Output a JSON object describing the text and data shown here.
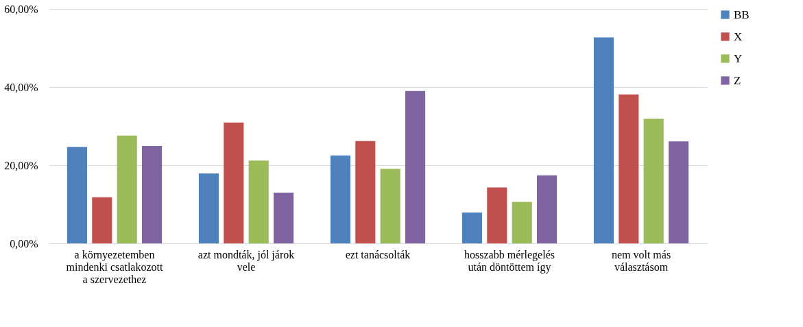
{
  "chart_data": {
    "type": "bar",
    "categories": [
      "a környezetemben\nmindenki csatlakozott\na szervezethez",
      "azt mondták, jól járok\nvele",
      "ezt tanácsolták",
      "hosszabb mérlegelés\nután döntöttem így",
      "nem volt más\nválasztásom"
    ],
    "series": [
      {
        "name": "BB",
        "color": "#4f81bd",
        "values": [
          24.7,
          17.9,
          22.5,
          7.9,
          52.7
        ]
      },
      {
        "name": "X",
        "color": "#c0504d",
        "values": [
          11.8,
          30.9,
          26.2,
          14.3,
          38.1
        ]
      },
      {
        "name": "Y",
        "color": "#9bbb59",
        "values": [
          27.6,
          21.2,
          19.1,
          10.6,
          31.9
        ]
      },
      {
        "name": "Z",
        "color": "#8064a2",
        "values": [
          24.9,
          13.0,
          39.0,
          17.4,
          26.1
        ]
      }
    ],
    "ylim": [
      0,
      60
    ],
    "yticks": [
      {
        "value": 0,
        "label": "0,00%"
      },
      {
        "value": 20,
        "label": "20,00%"
      },
      {
        "value": 40,
        "label": "40,00%"
      },
      {
        "value": 60,
        "label": "60,00%"
      }
    ],
    "grid": "y",
    "legend": "right"
  }
}
